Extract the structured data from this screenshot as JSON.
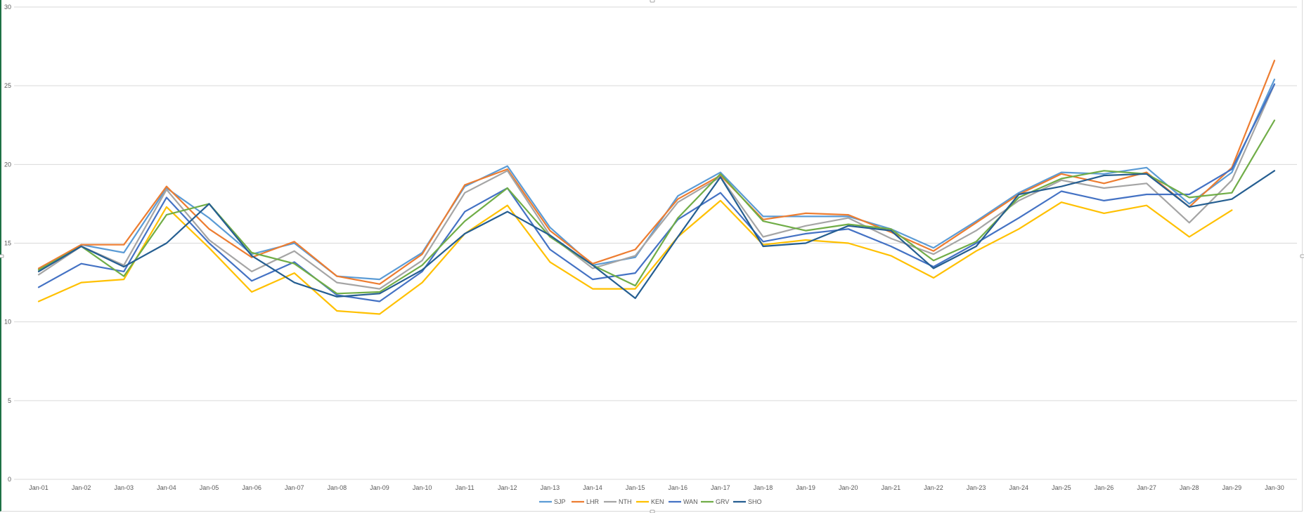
{
  "chart_data": {
    "type": "line",
    "title": "",
    "xlabel": "",
    "ylabel": "",
    "ylim": [
      0,
      30
    ],
    "y_ticks": [
      0,
      5,
      10,
      15,
      20,
      25,
      30
    ],
    "grid": true,
    "legend_position": "bottom",
    "categories": [
      "Jan-01",
      "Jan-02",
      "Jan-03",
      "Jan-04",
      "Jan-05",
      "Jan-06",
      "Jan-07",
      "Jan-08",
      "Jan-09",
      "Jan-10",
      "Jan-11",
      "Jan-12",
      "Jan-13",
      "Jan-14",
      "Jan-15",
      "Jan-16",
      "Jan-17",
      "Jan-18",
      "Jan-19",
      "Jan-20",
      "Jan-21",
      "Jan-22",
      "Jan-23",
      "Jan-24",
      "Jan-25",
      "Jan-26",
      "Jan-27",
      "Jan-28",
      "Jan-29",
      "Jan-30"
    ],
    "series": [
      {
        "name": "SJP",
        "color": "#5b9bd5",
        "values": [
          13.3,
          14.9,
          14.4,
          18.5,
          16.6,
          14.3,
          15.0,
          12.9,
          12.7,
          14.4,
          18.6,
          19.9,
          16.0,
          13.6,
          14.1,
          18.0,
          19.5,
          16.7,
          16.7,
          16.7,
          15.9,
          14.7,
          16.4,
          18.2,
          19.5,
          19.4,
          19.8,
          17.5,
          19.5,
          25.4
        ]
      },
      {
        "name": "LHR",
        "color": "#ed7d31",
        "values": [
          13.4,
          14.9,
          14.9,
          18.6,
          15.9,
          14.1,
          15.1,
          12.9,
          12.4,
          14.3,
          18.7,
          19.7,
          15.8,
          13.7,
          14.6,
          17.8,
          19.3,
          16.5,
          16.9,
          16.8,
          15.7,
          14.5,
          16.3,
          18.1,
          19.4,
          18.8,
          19.5,
          17.3,
          19.8,
          26.6
        ]
      },
      {
        "name": "NTH",
        "color": "#a5a5a5",
        "values": [
          13.0,
          14.8,
          13.6,
          18.4,
          15.2,
          13.2,
          14.5,
          12.5,
          12.1,
          13.9,
          18.2,
          19.6,
          15.5,
          13.4,
          14.2,
          17.6,
          19.2,
          15.4,
          16.1,
          16.6,
          15.3,
          14.3,
          15.8,
          17.7,
          19.0,
          18.5,
          18.8,
          16.3,
          19.0,
          25.1
        ]
      },
      {
        "name": "KEN",
        "color": "#ffc000",
        "values": [
          11.3,
          12.5,
          12.7,
          17.3,
          14.7,
          11.9,
          13.1,
          10.7,
          10.5,
          12.5,
          15.6,
          17.4,
          13.8,
          12.1,
          12.1,
          15.4,
          17.7,
          14.9,
          15.2,
          15.0,
          14.2,
          12.8,
          14.5,
          15.9,
          17.6,
          16.9,
          17.4,
          15.4,
          17.1,
          null
        ]
      },
      {
        "name": "WAN",
        "color": "#4472c4",
        "values": [
          12.2,
          13.7,
          13.2,
          17.9,
          15.0,
          12.6,
          13.8,
          11.7,
          11.3,
          13.2,
          17.0,
          18.5,
          14.6,
          12.7,
          13.1,
          16.5,
          18.2,
          15.1,
          15.6,
          15.9,
          14.8,
          13.5,
          15.0,
          16.6,
          18.3,
          17.7,
          18.1,
          18.1,
          19.7,
          25.1
        ]
      },
      {
        "name": "GRV",
        "color": "#70ad47",
        "values": [
          13.3,
          14.8,
          12.9,
          16.8,
          17.5,
          14.4,
          13.7,
          11.8,
          11.9,
          13.6,
          16.4,
          18.5,
          15.4,
          13.6,
          12.3,
          16.6,
          19.4,
          16.4,
          15.8,
          16.2,
          15.9,
          13.9,
          15.1,
          17.9,
          19.1,
          19.6,
          19.4,
          17.9,
          18.2,
          22.8
        ]
      },
      {
        "name": "SHO",
        "color": "#255e91",
        "values": [
          13.2,
          14.8,
          13.5,
          15.0,
          17.5,
          14.2,
          12.5,
          11.6,
          11.8,
          13.3,
          15.6,
          17.0,
          15.5,
          13.6,
          11.5,
          15.4,
          19.2,
          14.8,
          15.0,
          16.1,
          15.8,
          13.4,
          14.8,
          18.1,
          18.6,
          19.3,
          19.4,
          17.3,
          17.8,
          19.6
        ]
      }
    ]
  }
}
